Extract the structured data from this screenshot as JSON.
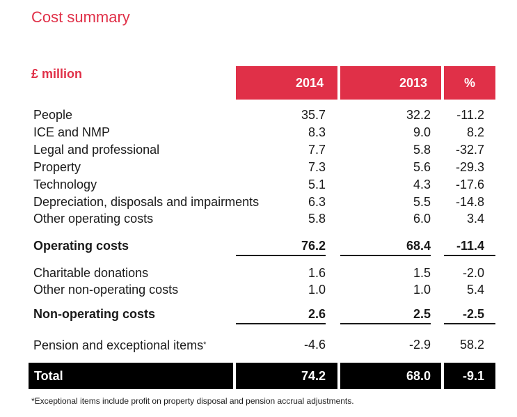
{
  "title": "Cost summary",
  "unit_label": "£ million",
  "columns": [
    "2014",
    "2013",
    "%"
  ],
  "rows": [
    {
      "label": "People",
      "v2014": "35.7",
      "v2013": "32.2",
      "pct": "-11.2"
    },
    {
      "label": "ICE and NMP",
      "v2014": "8.3",
      "v2013": "9.0",
      "pct": "8.2"
    },
    {
      "label": "Legal and professional",
      "v2014": "7.7",
      "v2013": "5.8",
      "pct": "-32.7"
    },
    {
      "label": "Property",
      "v2014": "7.3",
      "v2013": "5.6",
      "pct": "-29.3"
    },
    {
      "label": "Technology",
      "v2014": "5.1",
      "v2013": "4.3",
      "pct": "-17.6"
    },
    {
      "label": "Depreciation, disposals and impairments",
      "v2014": "6.3",
      "v2013": "5.5",
      "pct": "-14.8"
    },
    {
      "label": "Other operating costs",
      "v2014": "5.8",
      "v2013": "6.0",
      "pct": "3.4"
    }
  ],
  "operating": {
    "label": "Operating costs",
    "v2014": "76.2",
    "v2013": "68.4",
    "pct": "-11.4"
  },
  "nonop_rows": [
    {
      "label": "Charitable donations",
      "v2014": "1.6",
      "v2013": "1.5",
      "pct": "-2.0"
    },
    {
      "label": "Other non-operating costs",
      "v2014": "1.0",
      "v2013": "1.0",
      "pct": "5.4"
    }
  ],
  "nonoperating": {
    "label": "Non-operating costs",
    "v2014": "2.6",
    "v2013": "2.5",
    "pct": "-2.5"
  },
  "pension": {
    "label": "Pension and exceptional items",
    "marker": "*",
    "v2014": "-4.6",
    "v2013": "-2.9",
    "pct": "58.2"
  },
  "total": {
    "label": "Total",
    "v2014": "74.2",
    "v2013": "68.0",
    "pct": "-9.1"
  },
  "footnote": "*Exceptional items include profit on property disposal and pension accrual adjustments.",
  "colors": {
    "accent": "#e03048",
    "total_bg": "#000000"
  }
}
